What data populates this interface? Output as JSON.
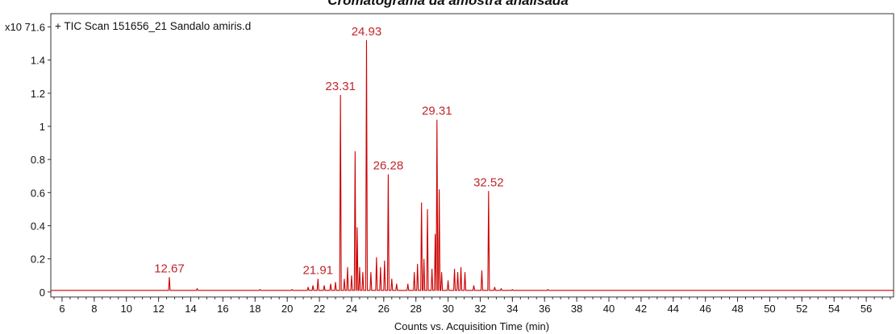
{
  "chart_data": {
    "type": "line",
    "title": "Cromatograma da amostra analisada",
    "trace_label": "+ TIC Scan 151656_21 Sandalo amiris.d",
    "y_multiplier": "x10 7",
    "xlabel": "Counts vs. Acquisition Time (min)",
    "ylabel": "",
    "xlim": [
      5.3,
      57.7
    ],
    "ylim": [
      -0.03,
      1.68
    ],
    "x_ticks": [
      6,
      8,
      10,
      12,
      14,
      16,
      18,
      20,
      22,
      24,
      26,
      28,
      30,
      32,
      34,
      36,
      38,
      40,
      42,
      44,
      46,
      48,
      50,
      52,
      54,
      56
    ],
    "y_ticks": [
      0,
      0.2,
      0.4,
      0.6,
      0.8,
      1,
      1.2,
      1.4,
      1.6
    ],
    "y_tick_labels": [
      "0",
      "0.2",
      "0.4",
      "0.6",
      "0.8",
      "1",
      "1.2",
      "1.4",
      "1.6"
    ],
    "minor_x_step": 0.5,
    "grid": false,
    "colors": {
      "trace": "#cc0000",
      "peak_label": "#c0262b",
      "axis": "#333333"
    },
    "baseline": 0.01,
    "series": [
      {
        "peaks": [
          {
            "x": 12.67,
            "y": 0.09,
            "label": "12.67"
          },
          {
            "x": 14.4,
            "y": 0.02
          },
          {
            "x": 18.3,
            "y": 0.015
          },
          {
            "x": 20.3,
            "y": 0.015
          },
          {
            "x": 21.3,
            "y": 0.03
          },
          {
            "x": 21.6,
            "y": 0.04
          },
          {
            "x": 21.91,
            "y": 0.08,
            "label": "21.91"
          },
          {
            "x": 22.3,
            "y": 0.04
          },
          {
            "x": 22.7,
            "y": 0.05
          },
          {
            "x": 23.0,
            "y": 0.06
          },
          {
            "x": 23.31,
            "y": 1.19,
            "label": "23.31"
          },
          {
            "x": 23.55,
            "y": 0.08
          },
          {
            "x": 23.75,
            "y": 0.15
          },
          {
            "x": 24.0,
            "y": 0.1
          },
          {
            "x": 24.22,
            "y": 0.85
          },
          {
            "x": 24.35,
            "y": 0.39
          },
          {
            "x": 24.5,
            "y": 0.15
          },
          {
            "x": 24.7,
            "y": 0.12
          },
          {
            "x": 24.93,
            "y": 1.52,
            "label": "24.93"
          },
          {
            "x": 25.2,
            "y": 0.12
          },
          {
            "x": 25.55,
            "y": 0.21
          },
          {
            "x": 25.8,
            "y": 0.15
          },
          {
            "x": 26.05,
            "y": 0.19
          },
          {
            "x": 26.28,
            "y": 0.71,
            "label": "26.28"
          },
          {
            "x": 26.5,
            "y": 0.08
          },
          {
            "x": 26.8,
            "y": 0.05
          },
          {
            "x": 27.5,
            "y": 0.05
          },
          {
            "x": 27.9,
            "y": 0.12
          },
          {
            "x": 28.1,
            "y": 0.17
          },
          {
            "x": 28.35,
            "y": 0.54
          },
          {
            "x": 28.5,
            "y": 0.2
          },
          {
            "x": 28.72,
            "y": 0.5
          },
          {
            "x": 29.0,
            "y": 0.14
          },
          {
            "x": 29.2,
            "y": 0.35
          },
          {
            "x": 29.31,
            "y": 1.04,
            "label": "29.31"
          },
          {
            "x": 29.45,
            "y": 0.62
          },
          {
            "x": 29.6,
            "y": 0.12
          },
          {
            "x": 30.0,
            "y": 0.07
          },
          {
            "x": 30.4,
            "y": 0.14
          },
          {
            "x": 30.6,
            "y": 0.12
          },
          {
            "x": 30.8,
            "y": 0.15
          },
          {
            "x": 31.05,
            "y": 0.12
          },
          {
            "x": 31.6,
            "y": 0.04
          },
          {
            "x": 32.1,
            "y": 0.13
          },
          {
            "x": 32.52,
            "y": 0.61,
            "label": "32.52"
          },
          {
            "x": 32.9,
            "y": 0.03
          },
          {
            "x": 33.3,
            "y": 0.02
          },
          {
            "x": 34.0,
            "y": 0.015
          },
          {
            "x": 36.2,
            "y": 0.015
          }
        ]
      }
    ]
  }
}
